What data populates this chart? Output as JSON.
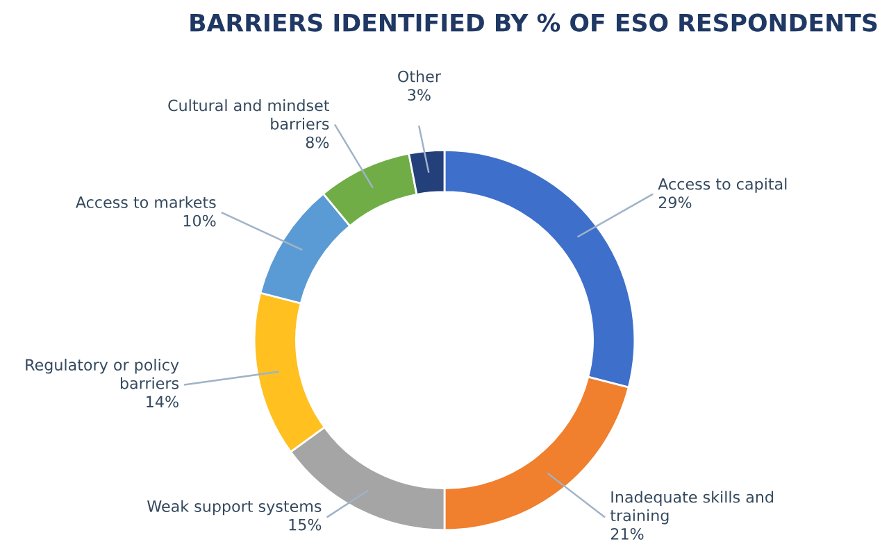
{
  "chart_data": {
    "type": "donut",
    "title": "BARRIERS IDENTIFIED BY % OF ESO RESPONDENTS",
    "categories": [
      "Access to capital",
      "Inadequate skills and training",
      "Weak support systems",
      "Regulatory or policy barriers",
      "Access to markets",
      "Cultural and mindset barriers",
      "Other"
    ],
    "values": [
      29,
      21,
      15,
      14,
      10,
      8,
      3
    ],
    "value_labels": [
      "29%",
      "21%",
      "15%",
      "14%",
      "10%",
      "8%",
      "3%"
    ],
    "colors": [
      "#3e6fca",
      "#f07f2e",
      "#a5a5a5",
      "#ffc020",
      "#5b9bd5",
      "#70ad47",
      "#24407a"
    ]
  }
}
